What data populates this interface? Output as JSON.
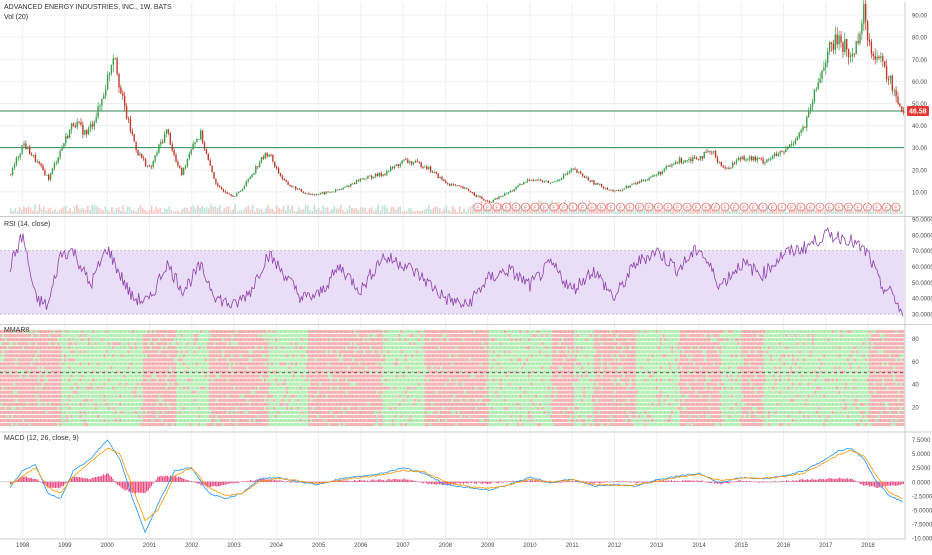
{
  "header": {
    "title": "ADVANCED ENERGY INDUSTRIES, INC., 1W, BATS",
    "volume_label": "Vol (20)"
  },
  "colors": {
    "up": "#26a69a",
    "down": "#ef5350",
    "candle_up": "#3a9e4a",
    "candle_down": "#c0392b",
    "rsi_line": "#8e44ad",
    "rsi_band": "#e9ddf7",
    "macd_line": "#2196f3",
    "signal_line": "#ff9800",
    "hist_neg": "#e91e63",
    "hline": "#2e8b57",
    "price_badge": "#e53935",
    "mmar_green": "#b6f0b6",
    "mmar_red": "#f4b4b4",
    "grid": "#eef0f3",
    "axis_text": "#4a4a4a"
  },
  "x_axis": {
    "years": [
      "1998",
      "1999",
      "2000",
      "2001",
      "2002",
      "2003",
      "2004",
      "2005",
      "2006",
      "2007",
      "2008",
      "2009",
      "2010",
      "2011",
      "2012",
      "2013",
      "2014",
      "2015",
      "2016",
      "2017",
      "2018"
    ]
  },
  "price_pane": {
    "ticks": [
      "90.00",
      "80.00",
      "70.00",
      "60.00",
      "50.00",
      "40.00",
      "30.00",
      "20.00",
      "10.00"
    ],
    "last_price_label": "46.58",
    "horizontal_lines": [
      46.58,
      30
    ],
    "event_marker_glyph": "E"
  },
  "rsi_pane": {
    "label": "RSI (14, close)",
    "ticks": [
      "90.0000",
      "80.0000",
      "70.0000",
      "60.0000",
      "50.0000",
      "40.0000",
      "30.0000"
    ]
  },
  "mmar_pane": {
    "label": "MMAR8",
    "ticks": [
      "80",
      "60",
      "40",
      "20"
    ]
  },
  "macd_pane": {
    "label": "MACD (12, 26, close, 9)",
    "ticks": [
      "7.5000",
      "5.0000",
      "2.5000",
      "0.0000",
      "-2.5000",
      "-5.0000",
      "-7.5000",
      "-10.0000"
    ]
  },
  "chart_data": [
    {
      "type": "candlestick",
      "title": "ADVANCED ENERGY INDUSTRIES, INC., 1W, BATS",
      "x": [
        "1997.7",
        "1998.0",
        "1998.3",
        "1998.6",
        "1998.9",
        "1999.2",
        "1999.5",
        "1999.8",
        "2000.0",
        "2000.15",
        "2000.3",
        "2000.5",
        "2000.7",
        "2000.85",
        "2001.0",
        "2001.2",
        "2001.4",
        "2001.6",
        "2001.75",
        "2002.0",
        "2002.2",
        "2002.4",
        "2002.6",
        "2002.8",
        "2003.0",
        "2003.2",
        "2003.4",
        "2003.6",
        "2003.8",
        "2004.0",
        "2004.2",
        "2004.4",
        "2004.6",
        "2004.8",
        "2005.0",
        "2005.5",
        "2006.0",
        "2006.5",
        "2007.0",
        "2007.5",
        "2008.0",
        "2008.5",
        "2009.0",
        "2009.5",
        "2010.0",
        "2010.5",
        "2011.0",
        "2011.5",
        "2012.0",
        "2012.5",
        "2013.0",
        "2013.5",
        "2014.0",
        "2014.3",
        "2014.6",
        "2015.0",
        "2015.5",
        "2016.0",
        "2016.5",
        "2017.0",
        "2017.3",
        "2017.6",
        "2017.9",
        "2018.0",
        "2018.3",
        "2018.6",
        "2018.8"
      ],
      "close": [
        18,
        32,
        24,
        16,
        30,
        42,
        36,
        48,
        62,
        75,
        55,
        40,
        28,
        24,
        20,
        30,
        38,
        24,
        18,
        32,
        36,
        22,
        12,
        10,
        8,
        12,
        18,
        24,
        28,
        20,
        14,
        12,
        10,
        9,
        9,
        11,
        16,
        18,
        24,
        22,
        14,
        11,
        5,
        10,
        16,
        14,
        20,
        14,
        10,
        14,
        18,
        24,
        26,
        28,
        20,
        26,
        24,
        28,
        40,
        72,
        80,
        70,
        92,
        78,
        68,
        56,
        46.58
      ],
      "ylim": [
        0,
        95
      ],
      "yticks": [
        10,
        20,
        30,
        40,
        50,
        60,
        70,
        80,
        90
      ],
      "horizontal_lines": [
        46.58,
        30
      ]
    },
    {
      "type": "line",
      "title": "RSI (14, close)",
      "x": [
        "1997.7",
        "1998.0",
        "1998.3",
        "1998.6",
        "1998.9",
        "1999.2",
        "1999.6",
        "2000.0",
        "2000.3",
        "2000.6",
        "2001.0",
        "2001.4",
        "2001.8",
        "2002.2",
        "2002.6",
        "2003.0",
        "2003.4",
        "2003.8",
        "2004.2",
        "2004.6",
        "2005.0",
        "2005.5",
        "2006.0",
        "2006.5",
        "2007.0",
        "2007.5",
        "2008.0",
        "2008.5",
        "2009.0",
        "2009.5",
        "2010.0",
        "2010.5",
        "2011.0",
        "2011.5",
        "2012.0",
        "2012.5",
        "2013.0",
        "2013.5",
        "2014.0",
        "2014.5",
        "2015.0",
        "2015.5",
        "2016.0",
        "2016.5",
        "2017.0",
        "2017.5",
        "2018.0",
        "2018.3",
        "2018.6",
        "2018.8"
      ],
      "values": [
        60,
        80,
        40,
        35,
        68,
        70,
        48,
        72,
        55,
        40,
        38,
        62,
        45,
        60,
        40,
        35,
        45,
        68,
        55,
        40,
        42,
        60,
        45,
        66,
        62,
        52,
        40,
        35,
        52,
        58,
        48,
        62,
        45,
        58,
        40,
        62,
        70,
        58,
        72,
        48,
        62,
        55,
        68,
        72,
        80,
        78,
        68,
        48,
        42,
        30
      ],
      "ylim": [
        25,
        90
      ],
      "band": [
        30,
        70
      ]
    },
    {
      "type": "heatmap",
      "title": "MMAR8",
      "x": [
        "1997.7",
        "1998.4",
        "1998.9",
        "1999.4",
        "1999.9",
        "2000.3",
        "2000.8",
        "2001.2",
        "2001.6",
        "2002.0",
        "2002.4",
        "2002.9",
        "2003.3",
        "2003.8",
        "2004.2",
        "2004.7",
        "2005.2",
        "2005.6",
        "2006.0",
        "2006.5",
        "2007.0",
        "2007.5",
        "2008.0",
        "2008.5",
        "2009.0",
        "2009.5",
        "2010.0",
        "2010.5",
        "2011.0",
        "2011.5",
        "2012.0",
        "2012.5",
        "2013.0",
        "2013.5",
        "2014.0",
        "2014.5",
        "2015.0",
        "2015.5",
        "2016.0",
        "2016.5",
        "2017.0",
        "2017.5",
        "2018.0",
        "2018.5"
      ],
      "values": [
        "red",
        "red",
        "green",
        "green",
        "green",
        "green",
        "red",
        "red",
        "green",
        "green",
        "red",
        "red",
        "red",
        "green",
        "green",
        "red",
        "red",
        "red",
        "red",
        "green",
        "green",
        "red",
        "red",
        "red",
        "green",
        "green",
        "green",
        "red",
        "green",
        "red",
        "red",
        "green",
        "green",
        "red",
        "red",
        "green",
        "red",
        "green",
        "green",
        "green",
        "green",
        "green",
        "red",
        "red"
      ],
      "ylim": [
        0,
        90
      ],
      "yticks": [
        20,
        40,
        60,
        80
      ],
      "dashed_level": 50
    },
    {
      "type": "line",
      "title": "MACD (12, 26, close, 9)",
      "x": [
        "1997.7",
        "1998.0",
        "1998.3",
        "1998.6",
        "1998.9",
        "1999.2",
        "1999.6",
        "2000.0",
        "2000.3",
        "2000.6",
        "2000.9",
        "2001.2",
        "2001.6",
        "2002.0",
        "2002.4",
        "2002.8",
        "2003.2",
        "2003.6",
        "2004.0",
        "2004.5",
        "2005.0",
        "2005.5",
        "2006.0",
        "2006.5",
        "2007.0",
        "2007.5",
        "2008.0",
        "2008.5",
        "2009.0",
        "2009.5",
        "2010.0",
        "2010.5",
        "2011.0",
        "2011.5",
        "2012.0",
        "2012.5",
        "2013.0",
        "2013.5",
        "2014.0",
        "2014.5",
        "2015.0",
        "2015.5",
        "2016.0",
        "2016.5",
        "2017.0",
        "2017.3",
        "2017.6",
        "2017.9",
        "2018.2",
        "2018.5",
        "2018.8"
      ],
      "series": [
        {
          "name": "MACD",
          "values": [
            -1,
            2,
            3,
            -2,
            -3,
            2,
            4,
            7.5,
            4,
            -3,
            -9,
            -4,
            2,
            2.5,
            -2,
            -3,
            -2,
            0.5,
            0.8,
            0,
            -0.5,
            0.5,
            1,
            1.5,
            2.5,
            1.5,
            -0.5,
            -1,
            -1.5,
            -0.5,
            0.8,
            -0.2,
            0.5,
            -0.8,
            -0.5,
            -0.8,
            0.3,
            1,
            1.5,
            -0.2,
            0.8,
            0.5,
            1,
            2,
            4,
            5.5,
            6,
            4,
            0,
            -2.5,
            -3.5
          ]
        },
        {
          "name": "Signal",
          "values": [
            -0.5,
            1,
            2.5,
            -1,
            -2,
            1,
            3.5,
            6,
            5,
            -1,
            -7,
            -5,
            1,
            2.5,
            -1,
            -2.5,
            -2,
            0,
            0.6,
            0.2,
            -0.3,
            0.3,
            0.8,
            1.2,
            2,
            1.8,
            0,
            -0.8,
            -1.2,
            -0.6,
            0.5,
            0,
            0.4,
            -0.5,
            -0.6,
            -0.6,
            0.1,
            0.8,
            1.3,
            0.2,
            0.6,
            0.6,
            0.9,
            1.6,
            3.5,
            4.8,
            5.6,
            4.6,
            1,
            -1.8,
            -3
          ]
        },
        {
          "name": "Histogram",
          "values": [
            -0.5,
            1,
            0.5,
            -1,
            -1,
            1,
            0.5,
            1.5,
            -1,
            -2,
            -2,
            1,
            1,
            0,
            -1,
            -0.5,
            0,
            0.5,
            0.2,
            -0.2,
            -0.2,
            0.2,
            0.2,
            0.3,
            0.5,
            -0.3,
            -0.5,
            -0.2,
            -0.3,
            0.1,
            0.3,
            -0.2,
            0.1,
            -0.3,
            0.1,
            -0.2,
            0.2,
            0.2,
            0.2,
            -0.4,
            0.2,
            -0.1,
            0.1,
            0.4,
            0.5,
            0.7,
            0.4,
            -0.6,
            -1,
            -0.7,
            -0.5
          ]
        }
      ],
      "ylim": [
        -10,
        8.5
      ]
    }
  ]
}
